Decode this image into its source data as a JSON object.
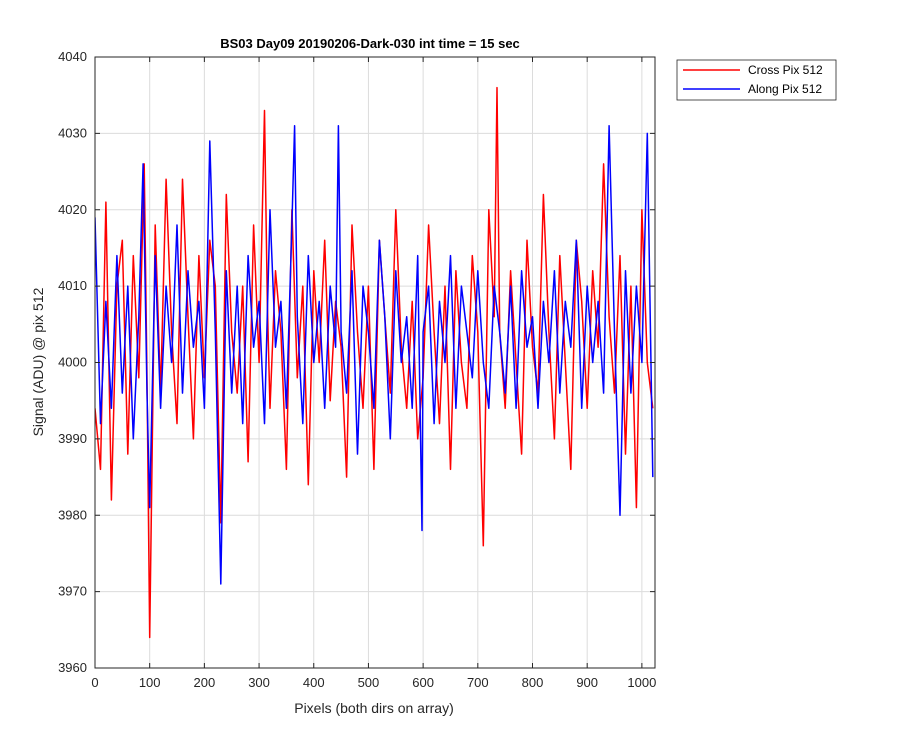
{
  "chart_data": {
    "type": "line",
    "title": "BS03 Day09 20190206-Dark-030 int time = 15 sec",
    "xlabel": "Pixels (both dirs on array)",
    "ylabel": "Signal (ADU) @ pix 512",
    "xlim": [
      0,
      1024
    ],
    "ylim": [
      3960,
      4040
    ],
    "xticks": [
      0,
      100,
      200,
      300,
      400,
      500,
      600,
      700,
      800,
      900,
      1000
    ],
    "yticks": [
      3960,
      3970,
      3980,
      3990,
      4000,
      4010,
      4020,
      4030,
      4040
    ],
    "grid": true,
    "legend_position": "outside top-right",
    "series": [
      {
        "name": "Cross Pix 512",
        "color": "#ff0000",
        "x": [
          0,
          10,
          20,
          30,
          40,
          50,
          60,
          70,
          80,
          90,
          95,
          100,
          110,
          120,
          130,
          140,
          150,
          160,
          170,
          180,
          190,
          200,
          210,
          220,
          230,
          240,
          250,
          260,
          270,
          280,
          290,
          300,
          310,
          315,
          320,
          330,
          340,
          350,
          360,
          370,
          380,
          390,
          400,
          410,
          420,
          430,
          440,
          450,
          460,
          470,
          480,
          490,
          500,
          510,
          520,
          530,
          540,
          550,
          560,
          570,
          580,
          590,
          600,
          610,
          620,
          630,
          640,
          650,
          660,
          670,
          680,
          690,
          700,
          710,
          720,
          730,
          735,
          740,
          750,
          760,
          770,
          780,
          790,
          800,
          810,
          820,
          830,
          840,
          850,
          860,
          870,
          880,
          890,
          900,
          910,
          920,
          930,
          940,
          950,
          960,
          970,
          980,
          990,
          1000,
          1010,
          1020
        ],
        "values": [
          3994,
          3986,
          4021,
          3982,
          4010,
          4016,
          3988,
          4014,
          3998,
          4026,
          3998,
          3964,
          4018,
          3996,
          4024,
          4004,
          3992,
          4024,
          4006,
          3990,
          4014,
          3998,
          4016,
          4010,
          3979,
          4022,
          4004,
          3996,
          4010,
          3987,
          4018,
          4000,
          4033,
          4008,
          3994,
          4012,
          4004,
          3986,
          4020,
          3998,
          4010,
          3984,
          4012,
          4000,
          4016,
          3995,
          4008,
          4002,
          3985,
          4018,
          4004,
          3994,
          4010,
          3986,
          4016,
          4006,
          3996,
          4020,
          4002,
          3994,
          4008,
          3990,
          3998,
          4018,
          4004,
          3992,
          4010,
          3986,
          4012,
          4000,
          3994,
          4014,
          4004,
          3976,
          4020,
          4006,
          4036,
          4004,
          3994,
          4012,
          4000,
          3988,
          4016,
          4002,
          3996,
          4022,
          4004,
          3990,
          4014,
          4000,
          3986,
          4016,
          4008,
          3994,
          4012,
          4002,
          4026,
          4006,
          3996,
          4014,
          3988,
          4010,
          3981,
          4020,
          4000,
          3994
        ]
      },
      {
        "name": "Along Pix 512",
        "color": "#0000ff",
        "x": [
          0,
          10,
          20,
          30,
          40,
          50,
          60,
          70,
          80,
          88,
          95,
          100,
          110,
          120,
          130,
          140,
          150,
          160,
          170,
          180,
          190,
          200,
          210,
          220,
          230,
          240,
          250,
          260,
          270,
          280,
          290,
          300,
          310,
          320,
          330,
          340,
          350,
          360,
          365,
          370,
          380,
          390,
          400,
          410,
          420,
          430,
          440,
          445,
          450,
          460,
          470,
          480,
          490,
          500,
          510,
          520,
          530,
          540,
          550,
          560,
          570,
          580,
          590,
          598,
          600,
          610,
          620,
          630,
          640,
          650,
          660,
          670,
          680,
          690,
          700,
          710,
          720,
          730,
          740,
          750,
          760,
          770,
          780,
          790,
          800,
          810,
          820,
          830,
          840,
          850,
          860,
          870,
          880,
          890,
          900,
          910,
          920,
          930,
          940,
          950,
          960,
          970,
          980,
          990,
          1000,
          1010,
          1020
        ],
        "values": [
          4019,
          3992,
          4008,
          3994,
          4014,
          3996,
          4010,
          3990,
          4006,
          4026,
          3996,
          3981,
          4014,
          3994,
          4010,
          4000,
          4018,
          3996,
          4012,
          4002,
          4008,
          3994,
          4029,
          4004,
          3971,
          4012,
          3996,
          4010,
          3992,
          4014,
          4002,
          4008,
          3992,
          4020,
          4002,
          4008,
          3994,
          4018,
          4031,
          4006,
          3992,
          4014,
          4000,
          4008,
          3994,
          4010,
          4002,
          4031,
          4004,
          3996,
          4012,
          3988,
          4010,
          4004,
          3994,
          4016,
          4006,
          3990,
          4012,
          4000,
          4006,
          3994,
          4014,
          3978,
          4004,
          4010,
          3992,
          4008,
          4000,
          4014,
          3994,
          4010,
          4004,
          3998,
          4012,
          4000,
          3994,
          4010,
          4004,
          3996,
          4010,
          3994,
          4012,
          4002,
          4006,
          3994,
          4008,
          4000,
          4012,
          3996,
          4008,
          4002,
          4016,
          3994,
          4010,
          4000,
          4008,
          3996,
          4031,
          4004,
          3980,
          4012,
          3996,
          4010,
          4000,
          4030,
          3985
        ]
      }
    ]
  }
}
